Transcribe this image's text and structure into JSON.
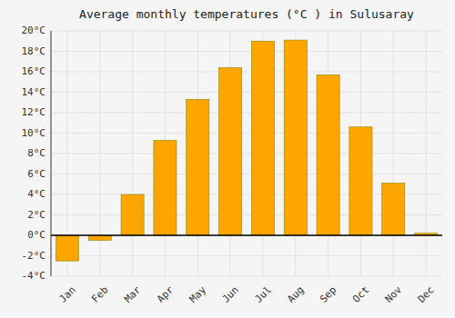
{
  "chart_data": {
    "type": "bar",
    "title": "Average monthly temperatures (°C ) in Sulusaray",
    "categories": [
      "Jan",
      "Feb",
      "Mar",
      "Apr",
      "May",
      "Jun",
      "Jul",
      "Aug",
      "Sep",
      "Oct",
      "Nov",
      "Dec"
    ],
    "values": [
      -2.5,
      -0.5,
      4.0,
      9.3,
      13.3,
      16.4,
      19.0,
      19.1,
      15.7,
      10.6,
      5.1,
      0.2
    ],
    "color": "#FFA500",
    "ylim": [
      -4,
      20
    ],
    "yticks": [
      {
        "value": -4,
        "label": "-4°C"
      },
      {
        "value": -2,
        "label": "-2°C"
      },
      {
        "value": 0,
        "label": "0°C"
      },
      {
        "value": 2,
        "label": "2°C"
      },
      {
        "value": 4,
        "label": "4°C"
      },
      {
        "value": 6,
        "label": "6°C"
      },
      {
        "value": 8,
        "label": "8°C"
      },
      {
        "value": 10,
        "label": "10°C"
      },
      {
        "value": 12,
        "label": "12°C"
      },
      {
        "value": 14,
        "label": "14°C"
      },
      {
        "value": 16,
        "label": "16°C"
      },
      {
        "value": 18,
        "label": "18°C"
      },
      {
        "value": 20,
        "label": "20°C"
      }
    ],
    "grid": true
  }
}
